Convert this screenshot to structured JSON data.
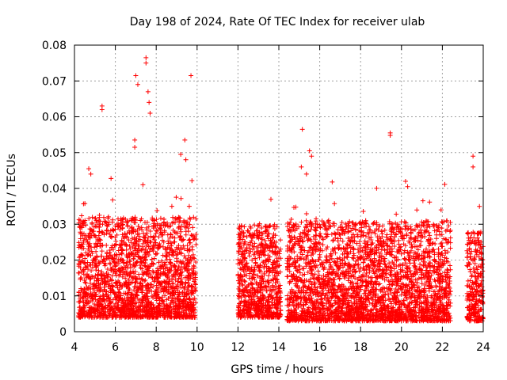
{
  "chart_data": {
    "type": "scatter",
    "title": "Day 198 of 2024, Rate Of TEC Index for receiver ulab",
    "xlabel": "GPS time / hours",
    "ylabel": "ROTI / TECUs",
    "xlim": [
      4,
      24
    ],
    "ylim": [
      0,
      0.08
    ],
    "x_ticks": [
      "4",
      "6",
      "8",
      "10",
      "12",
      "14",
      "16",
      "18",
      "20",
      "22",
      "24"
    ],
    "y_ticks": [
      "0",
      "0.01",
      "0.02",
      "0.03",
      "0.04",
      "0.05",
      "0.06",
      "0.07",
      "0.08"
    ],
    "grid": true,
    "marker": "plus",
    "series_color": "#ff0000",
    "data_segments": [
      {
        "start": 4.2,
        "end": 9.95,
        "typical_low": 0.004,
        "typical_high": 0.032
      },
      {
        "start": 12.0,
        "end": 14.1,
        "typical_low": 0.004,
        "typical_high": 0.03
      },
      {
        "start": 14.4,
        "end": 22.4,
        "typical_low": 0.003,
        "typical_high": 0.031
      },
      {
        "start": 23.2,
        "end": 24.0,
        "typical_low": 0.003,
        "typical_high": 0.028
      }
    ],
    "notable_points": [
      {
        "x": 5.35,
        "y": 0.063
      },
      {
        "x": 5.35,
        "y": 0.062
      },
      {
        "x": 7.0,
        "y": 0.0715
      },
      {
        "x": 7.1,
        "y": 0.069
      },
      {
        "x": 7.5,
        "y": 0.0765
      },
      {
        "x": 7.5,
        "y": 0.075
      },
      {
        "x": 7.6,
        "y": 0.067
      },
      {
        "x": 7.65,
        "y": 0.064
      },
      {
        "x": 7.7,
        "y": 0.061
      },
      {
        "x": 6.95,
        "y": 0.0535
      },
      {
        "x": 6.95,
        "y": 0.0515
      },
      {
        "x": 9.7,
        "y": 0.0715
      },
      {
        "x": 9.4,
        "y": 0.0535
      },
      {
        "x": 9.45,
        "y": 0.048
      },
      {
        "x": 9.2,
        "y": 0.0495
      },
      {
        "x": 15.15,
        "y": 0.0565
      },
      {
        "x": 15.5,
        "y": 0.0505
      },
      {
        "x": 15.6,
        "y": 0.049
      },
      {
        "x": 19.45,
        "y": 0.0555
      },
      {
        "x": 19.45,
        "y": 0.0548
      },
      {
        "x": 23.5,
        "y": 0.049
      },
      {
        "x": 23.5,
        "y": 0.046
      },
      {
        "x": 4.7,
        "y": 0.0455
      },
      {
        "x": 4.8,
        "y": 0.044
      },
      {
        "x": 15.1,
        "y": 0.046
      },
      {
        "x": 15.35,
        "y": 0.044
      },
      {
        "x": 20.2,
        "y": 0.042
      },
      {
        "x": 20.3,
        "y": 0.0405
      }
    ]
  }
}
